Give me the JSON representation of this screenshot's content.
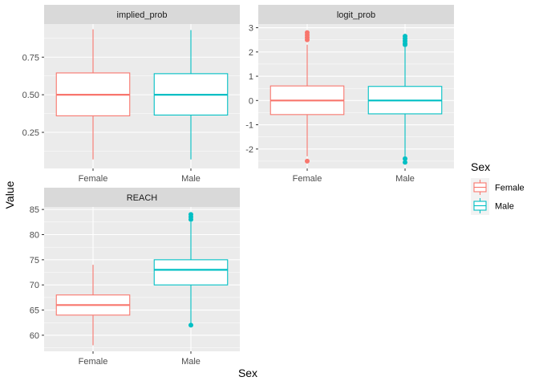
{
  "chart_data": {
    "type": "boxplot",
    "facet_var": "Sex",
    "xlabel": "Sex",
    "ylabel": "Value",
    "legend": {
      "title": "Sex",
      "position": "right",
      "entries": [
        "Female",
        "Male"
      ]
    },
    "colors": {
      "Female": "#F8766D",
      "Male": "#00BFC4"
    },
    "categories": [
      "Female",
      "Male"
    ],
    "panels": [
      {
        "id": "implied_prob",
        "title": "implied_prob",
        "ylim": [
          0.01,
          0.97
        ],
        "yticks": [
          0.25,
          0.5,
          0.75
        ],
        "ytick_labels": [
          "0.25",
          "0.50",
          "0.75"
        ],
        "boxes": [
          {
            "group": "Female",
            "lower_whisker": 0.07,
            "q1": 0.36,
            "median": 0.5,
            "q3": 0.645,
            "upper_whisker": 0.935,
            "outliers": []
          },
          {
            "group": "Male",
            "lower_whisker": 0.07,
            "q1": 0.365,
            "median": 0.5,
            "q3": 0.64,
            "upper_whisker": 0.93,
            "outliers": []
          }
        ]
      },
      {
        "id": "logit_prob",
        "title": "logit_prob",
        "ylim": [
          -2.8,
          3.15
        ],
        "yticks": [
          -2,
          -1,
          0,
          1,
          2,
          3
        ],
        "ytick_labels": [
          "-2",
          "-1",
          "0",
          "1",
          "2",
          "3"
        ],
        "boxes": [
          {
            "group": "Female",
            "lower_whisker": -2.3,
            "q1": -0.58,
            "median": 0.0,
            "q3": 0.6,
            "upper_whisker": 2.3,
            "outliers": [
              -2.5,
              2.5,
              2.6,
              2.7,
              2.8
            ]
          },
          {
            "group": "Male",
            "lower_whisker": -2.3,
            "q1": -0.55,
            "median": 0.0,
            "q3": 0.58,
            "upper_whisker": 2.2,
            "outliers": [
              -2.4,
              -2.55,
              2.3,
              2.35,
              2.45,
              2.55,
              2.65
            ]
          }
        ]
      },
      {
        "id": "REACH",
        "title": "REACH",
        "ylim": [
          56.8,
          85.5
        ],
        "yticks": [
          60,
          65,
          70,
          75,
          80,
          85
        ],
        "ytick_labels": [
          "60",
          "65",
          "70",
          "75",
          "80",
          "85"
        ],
        "boxes": [
          {
            "group": "Female",
            "lower_whisker": 58,
            "q1": 64,
            "median": 66,
            "q3": 68,
            "upper_whisker": 74,
            "outliers": []
          },
          {
            "group": "Male",
            "lower_whisker": 62,
            "q1": 70,
            "median": 73,
            "q3": 75,
            "upper_whisker": 82.5,
            "outliers": [
              62,
              83,
              83.5,
              84
            ]
          }
        ]
      }
    ]
  }
}
